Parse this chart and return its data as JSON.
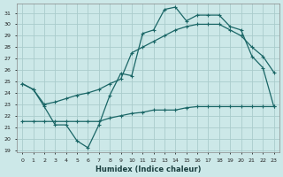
{
  "title": "",
  "xlabel": "Humidex (Indice chaleur)",
  "background_color": "#cce8e8",
  "grid_color": "#aacccc",
  "line_color": "#1a6666",
  "xlim": [
    -0.5,
    23.5
  ],
  "ylim": [
    18.8,
    31.8
  ],
  "yticks": [
    19,
    20,
    21,
    22,
    23,
    24,
    25,
    26,
    27,
    28,
    29,
    30,
    31
  ],
  "xticks": [
    0,
    1,
    2,
    3,
    4,
    5,
    6,
    7,
    8,
    9,
    10,
    11,
    12,
    13,
    14,
    15,
    16,
    17,
    18,
    19,
    20,
    21,
    22,
    23
  ],
  "line1_x": [
    0,
    1,
    2,
    3,
    4,
    5,
    6,
    7,
    8,
    9,
    10,
    11,
    12,
    13,
    14,
    15,
    16,
    17,
    18,
    19,
    20,
    21,
    22,
    23
  ],
  "line1_y": [
    24.8,
    24.3,
    22.8,
    21.2,
    21.2,
    19.8,
    19.2,
    21.2,
    23.8,
    25.7,
    25.5,
    29.2,
    29.5,
    31.3,
    31.5,
    30.3,
    30.8,
    30.8,
    30.8,
    29.8,
    29.5,
    27.2,
    26.2,
    22.8
  ],
  "line2_x": [
    0,
    1,
    2,
    3,
    4,
    5,
    6,
    7,
    8,
    9,
    10,
    11,
    12,
    13,
    14,
    15,
    16,
    17,
    18,
    19,
    20,
    21,
    22,
    23
  ],
  "line2_y": [
    24.8,
    24.3,
    23.0,
    23.2,
    23.5,
    23.8,
    24.0,
    24.3,
    24.8,
    25.2,
    27.5,
    28.0,
    28.5,
    29.0,
    29.5,
    29.8,
    30.0,
    30.0,
    30.0,
    29.5,
    29.0,
    28.0,
    27.2,
    25.8
  ],
  "line3_x": [
    0,
    1,
    2,
    3,
    4,
    5,
    6,
    7,
    8,
    9,
    10,
    11,
    12,
    13,
    14,
    15,
    16,
    17,
    18,
    19,
    20,
    21,
    22,
    23
  ],
  "line3_y": [
    21.5,
    21.5,
    21.5,
    21.5,
    21.5,
    21.5,
    21.5,
    21.5,
    21.8,
    22.0,
    22.2,
    22.3,
    22.5,
    22.5,
    22.5,
    22.7,
    22.8,
    22.8,
    22.8,
    22.8,
    22.8,
    22.8,
    22.8,
    22.8
  ]
}
